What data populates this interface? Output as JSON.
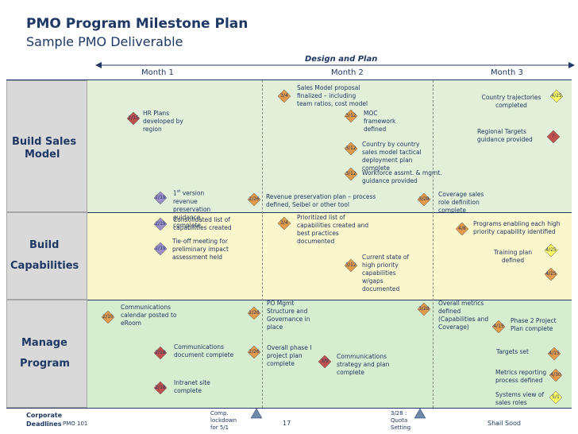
{
  "title": "PMO Program Milestone Plan",
  "subtitle": "Sample PMO Deliverable",
  "design_label": "Design and Plan",
  "months": [
    "Month 1",
    "Month 2",
    "Month 3"
  ],
  "rows": [
    "Build Sales Model",
    "Build Capabilities",
    "Manage Program"
  ],
  "row_label_lines": {
    "sales": [
      "Build Sales",
      "Model"
    ],
    "capabilities": [
      "Build",
      "Capabilities"
    ],
    "manage": [
      "Manage",
      "Program"
    ]
  },
  "colors": {
    "sales_band": "#e2f0d9",
    "capabilities_band": "#fbf7cc",
    "manage_band": "#d6edd0",
    "diamond_red": "#c0504d",
    "diamond_orange": "#e39a4a",
    "diamond_purple": "#9c8ec9",
    "diamond_yellow": "#ffff66",
    "title": "#1f3864"
  },
  "milestones": {
    "hr_plans": {
      "date": "2/15",
      "text": "HR Plans developed by region"
    },
    "sales_model_proposal": {
      "date": "3/4",
      "text": "Sales Model proposal finalized – including team ratios, cost model"
    },
    "moc_framework": {
      "date": "3/12",
      "text": "MOC framework defined"
    },
    "country_by_country": {
      "date": "3/12",
      "text": "Country by country sales model tactical deployment plan complete"
    },
    "workforce": {
      "date": "3/12",
      "text": "Workforce assmt. & mgmt. guidance provided"
    },
    "revenue_guidance": {
      "date": "2/19",
      "sup": "st",
      "text_prefix": "1",
      "text": " version revenue preservation guidance complete"
    },
    "revenue_plan": {
      "date": "2/26",
      "text": "Revenue preservation plan – process defined, Seibel or other tool"
    },
    "coverage_sales": {
      "date": "3/28",
      "text": "Coverage sales role definition complete"
    },
    "country_trajectories": {
      "date": "4/25",
      "text": "Country trajectories completed"
    },
    "regional_targets": {
      "date": "?",
      "text": "Regional Targets guidance provided"
    },
    "consolidated": {
      "date": "2/19",
      "text": "Consolidated list of capabilities created"
    },
    "tie_off": {
      "date": "2/19",
      "text": "Tie-off meeting for preliminary impact assessment held"
    },
    "prioritized": {
      "date": "3/4",
      "text": "Prioritized list of capabilities created and best practices documented"
    },
    "current_state": {
      "date": "3/12",
      "text": "Current state of high priority capabilities w/gaps documented"
    },
    "programs_enabling": {
      "date": "4/8",
      "text": "Programs enabling each high priority capability identified"
    },
    "training_plan": {
      "date": "4/25",
      "text": "Training plan defined"
    },
    "cap_extra": {
      "date": "4/25"
    },
    "communications_calendar": {
      "date": "2/10",
      "text": "Communications calendar posted to eRoom"
    },
    "communications_doc": {
      "date": "2/18",
      "text": "Communications document complete"
    },
    "intranet": {
      "date": "2/18",
      "text": "Intranet site complete"
    },
    "po_mgmt": {
      "date": "2/26",
      "text": "PO Mgmt Structure and Governance in place"
    },
    "overall_phase1": {
      "date": "2/26",
      "text": "Overall phase I project plan complete"
    },
    "comm_strategy": {
      "date": "3/9",
      "text": "Communications strategy and plan complete"
    },
    "overall_metrics": {
      "date": "3/28",
      "text": "Overall metrics defined (Capabilities and Coverage)"
    },
    "phase2": {
      "date": "4/15",
      "text": "Phase 2 Project Plan complete"
    },
    "targets_set": {
      "date": "4/15",
      "text": "Targets set"
    },
    "metrics_reporting": {
      "date": "4/30",
      "text": "Metrics reporting process defined"
    },
    "systems_view": {
      "date": "5/1",
      "text": "Systems view of sales roles"
    }
  },
  "footer": {
    "corporate_deadlines_lines": [
      "Corporate",
      "Deadlines"
    ],
    "pmo": "PMO 101",
    "comp_lockdown_lines": [
      "Comp.",
      "lockdown",
      "for 5/1"
    ],
    "page_number": "17",
    "quota_lines": [
      "3/28 :",
      "Quota",
      "Setting"
    ],
    "author": "Shail Sood"
  }
}
